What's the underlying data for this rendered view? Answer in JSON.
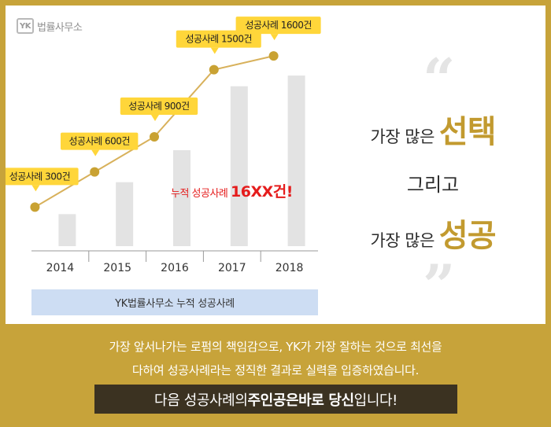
{
  "logo": {
    "mark": "YK",
    "name": "법률사무소"
  },
  "chart_data": {
    "type": "bar",
    "categories": [
      "2014",
      "2015",
      "2016",
      "2017",
      "2018"
    ],
    "values": [
      300,
      600,
      900,
      1500,
      1600
    ],
    "labels": [
      "성공사례 300건",
      "성공사례 600건",
      "성공사례 900건",
      "성공사례 1500건",
      "성공사례 1600건"
    ],
    "title": "",
    "xlabel": "YK법률사무소 누적 성공사례",
    "ylabel": "",
    "ylim": [
      0,
      1800
    ],
    "grid": false,
    "annotation": {
      "prefix": "누적 성공사례",
      "value": "16XX건!"
    },
    "colors": {
      "bar": "#e3e3e3",
      "line": "#d8b15b",
      "point": "#c9a233",
      "label_bg": "#ffd63a",
      "annotation": "#e51c1c"
    }
  },
  "tagline": {
    "line1_small": "가장 많은",
    "line1_big": "선택",
    "line2": "그리고",
    "line3_small": "가장 많은",
    "line3_big": "성공",
    "open_quote": "“",
    "close_quote": "”"
  },
  "footer": {
    "text1": "가장 앞서나가는 로펌의 책임감으로, YK가 가장 잘하는 것으로 최선을",
    "text2": "다하여 성공사례라는 정직한 결과로 실력을 입증하였습니다.",
    "cta_pre": "다음 성공사례의 ",
    "cta_bold1": "주인공은",
    "cta_mid": " ",
    "cta_bold2": "바로 당신",
    "cta_post": "입니다!"
  }
}
